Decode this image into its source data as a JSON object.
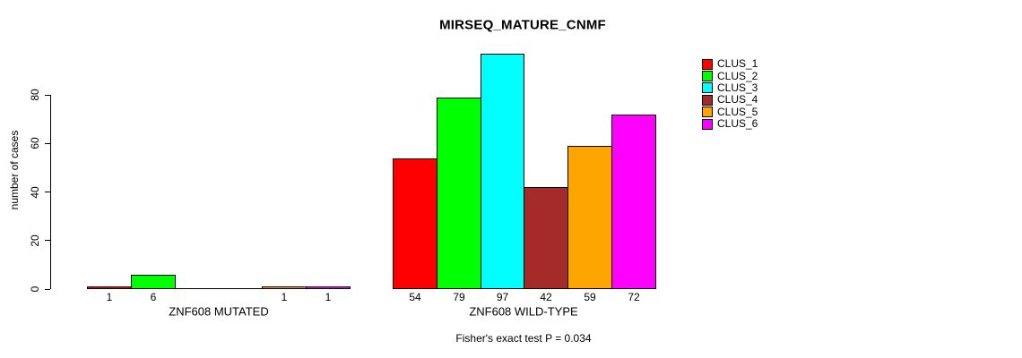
{
  "title": "MIRSEQ_MATURE_CNMF",
  "footer": "Fisher's exact test P = 0.034",
  "chart_data": {
    "type": "bar",
    "title": "MIRSEQ_MATURE_CNMF",
    "xlabel": "",
    "ylabel": "number of cases",
    "categories": [
      "ZNF608 MUTATED",
      "ZNF608 WILD-TYPE"
    ],
    "series": [
      {
        "name": "CLUS_1",
        "color": "#FF0000",
        "values": [
          1,
          54
        ]
      },
      {
        "name": "CLUS_2",
        "color": "#00FF00",
        "values": [
          6,
          79
        ]
      },
      {
        "name": "CLUS_3",
        "color": "#00FFFF",
        "values": [
          0,
          97
        ]
      },
      {
        "name": "CLUS_4",
        "color": "#A52A2A",
        "values": [
          0,
          42
        ]
      },
      {
        "name": "CLUS_5",
        "color": "#FFA500",
        "values": [
          1,
          59
        ]
      },
      {
        "name": "CLUS_6",
        "color": "#FF00FF",
        "values": [
          1,
          72
        ]
      }
    ],
    "bar_value_labels": {
      "shown_for_nonzero_only": true
    },
    "yticks": [
      0,
      20,
      40,
      60,
      80
    ],
    "ylim": [
      0,
      97
    ],
    "grid": false,
    "legend_position": "right",
    "annotation": "Fisher's exact test P = 0.034"
  }
}
